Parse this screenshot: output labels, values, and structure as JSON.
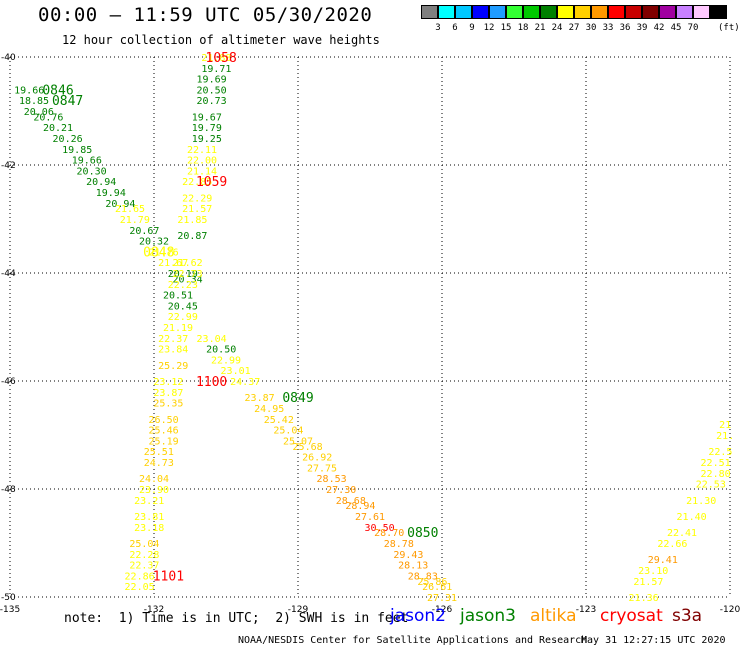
{
  "header": {
    "title": "00:00 – 11:59 UTC 05/30/2020",
    "subtitle": "12 hour collection of altimeter wave heights"
  },
  "color_scale": {
    "unit": "(ft)",
    "bins": [
      {
        "label": "",
        "color": "#7f7f7f"
      },
      {
        "label": "3",
        "color": "#00ffff"
      },
      {
        "label": "6",
        "color": "#00c8ff"
      },
      {
        "label": "9",
        "color": "#0000ff"
      },
      {
        "label": "12",
        "color": "#1f9cff"
      },
      {
        "label": "15",
        "color": "#33ff33"
      },
      {
        "label": "18",
        "color": "#00c800"
      },
      {
        "label": "21",
        "color": "#008000"
      },
      {
        "label": "24",
        "color": "#ffff00"
      },
      {
        "label": "27",
        "color": "#ffd000"
      },
      {
        "label": "30",
        "color": "#ff9900"
      },
      {
        "label": "33",
        "color": "#ff0000"
      },
      {
        "label": "36",
        "color": "#c80000"
      },
      {
        "label": "39",
        "color": "#800000"
      },
      {
        "label": "42",
        "color": "#a000a0"
      },
      {
        "label": "45",
        "color": "#c880ff"
      },
      {
        "label": "70",
        "color": "#ffc8ff"
      },
      {
        "label": "",
        "color": "#000000"
      }
    ]
  },
  "map": {
    "lat_range": [
      -50,
      -40
    ],
    "lon_range": [
      -135,
      -120
    ],
    "lat_ticks": [
      {
        "value": -40,
        "label": "-40"
      },
      {
        "value": -42,
        "label": "-42"
      },
      {
        "value": -44,
        "label": "-44"
      },
      {
        "value": -46,
        "label": "-46"
      },
      {
        "value": -48,
        "label": "-48"
      },
      {
        "value": -50,
        "label": "-50"
      }
    ],
    "lon_ticks": [
      {
        "value": -135,
        "label": "-135"
      },
      {
        "value": -132,
        "label": "-132"
      },
      {
        "value": -129,
        "label": "-129"
      },
      {
        "value": -126,
        "label": "-126"
      },
      {
        "value": -123,
        "label": "-123"
      },
      {
        "value": -120,
        "label": "-120"
      }
    ],
    "colors": {
      "dark_green": "#008000",
      "yellow": "#ffff00",
      "gold": "#ffd000",
      "orange": "#ff9900",
      "red": "#ff0000",
      "dark_red": "#c80000"
    },
    "time_labels": [
      {
        "text": "0846",
        "lon": -134.0,
        "lat": -40.6,
        "color": "#008000"
      },
      {
        "text": "0847",
        "lon": -133.8,
        "lat": -40.8,
        "color": "#008000"
      },
      {
        "text": "0848",
        "lon": -131.9,
        "lat": -43.6,
        "color": "#ffff00"
      },
      {
        "text": "1058",
        "lon": -130.6,
        "lat": -40.0,
        "color": "#ff0000"
      },
      {
        "text": "1059",
        "lon": -130.8,
        "lat": -42.3,
        "color": "#ff0000"
      },
      {
        "text": "1100",
        "lon": -130.8,
        "lat": -46.0,
        "color": "#ff0000"
      },
      {
        "text": "0849",
        "lon": -129.0,
        "lat": -46.3,
        "color": "#008000"
      },
      {
        "text": "0850",
        "lon": -126.4,
        "lat": -48.8,
        "color": "#008000"
      },
      {
        "text": "1101",
        "lon": -131.7,
        "lat": -49.6,
        "color": "#ff0000"
      }
    ],
    "observations": [
      {
        "value": "19.66",
        "lon": -134.6,
        "lat": -40.6,
        "color": "#008000"
      },
      {
        "value": "18.85",
        "lon": -134.5,
        "lat": -40.8,
        "color": "#008000"
      },
      {
        "value": "20.06",
        "lon": -134.4,
        "lat": -41.0,
        "color": "#008000"
      },
      {
        "value": "20.76",
        "lon": -134.2,
        "lat": -41.1,
        "color": "#008000"
      },
      {
        "value": "20.21",
        "lon": -134.0,
        "lat": -41.3,
        "color": "#008000"
      },
      {
        "value": "20.26",
        "lon": -133.8,
        "lat": -41.5,
        "color": "#008000"
      },
      {
        "value": "19.85",
        "lon": -133.6,
        "lat": -41.7,
        "color": "#008000"
      },
      {
        "value": "19.66",
        "lon": -133.4,
        "lat": -41.9,
        "color": "#008000"
      },
      {
        "value": "20.30",
        "lon": -133.3,
        "lat": -42.1,
        "color": "#008000"
      },
      {
        "value": "20.94",
        "lon": -133.1,
        "lat": -42.3,
        "color": "#008000"
      },
      {
        "value": "19.94",
        "lon": -132.9,
        "lat": -42.5,
        "color": "#008000"
      },
      {
        "value": "20.94",
        "lon": -132.7,
        "lat": -42.7,
        "color": "#008000"
      },
      {
        "value": "21.65",
        "lon": -132.5,
        "lat": -42.8,
        "color": "#ffff00"
      },
      {
        "value": "21.79",
        "lon": -132.4,
        "lat": -43.0,
        "color": "#ffff00"
      },
      {
        "value": "20.67",
        "lon": -132.2,
        "lat": -43.2,
        "color": "#008000"
      },
      {
        "value": "20.32",
        "lon": -132.0,
        "lat": -43.4,
        "color": "#008000"
      },
      {
        "value": "21.76",
        "lon": -131.8,
        "lat": -43.6,
        "color": "#ffff00"
      },
      {
        "value": "21.67",
        "lon": -131.6,
        "lat": -43.8,
        "color": "#ffff00"
      },
      {
        "value": "20.19",
        "lon": -131.4,
        "lat": -44.0,
        "color": "#008000"
      },
      {
        "value": "20.34",
        "lon": -131.3,
        "lat": -44.1,
        "color": "#008000"
      },
      {
        "value": "21.88",
        "lon": -130.7,
        "lat": -40.0,
        "color": "#ffff00"
      },
      {
        "value": "19.71",
        "lon": -130.7,
        "lat": -40.2,
        "color": "#008000"
      },
      {
        "value": "19.69",
        "lon": -130.8,
        "lat": -40.4,
        "color": "#008000"
      },
      {
        "value": "20.50",
        "lon": -130.8,
        "lat": -40.6,
        "color": "#008000"
      },
      {
        "value": "20.73",
        "lon": -130.8,
        "lat": -40.8,
        "color": "#008000"
      },
      {
        "value": "19.67",
        "lon": -130.9,
        "lat": -41.1,
        "color": "#008000"
      },
      {
        "value": "19.79",
        "lon": -130.9,
        "lat": -41.3,
        "color": "#008000"
      },
      {
        "value": "19.25",
        "lon": -130.9,
        "lat": -41.5,
        "color": "#008000"
      },
      {
        "value": "22.11",
        "lon": -131.0,
        "lat": -41.7,
        "color": "#ffff00"
      },
      {
        "value": "22.00",
        "lon": -131.0,
        "lat": -41.9,
        "color": "#ffff00"
      },
      {
        "value": "21.14",
        "lon": -131.0,
        "lat": -42.1,
        "color": "#ffff00"
      },
      {
        "value": "22.85",
        "lon": -131.1,
        "lat": -42.3,
        "color": "#ffff00"
      },
      {
        "value": "22.29",
        "lon": -131.1,
        "lat": -42.6,
        "color": "#ffff00"
      },
      {
        "value": "21.57",
        "lon": -131.1,
        "lat": -42.8,
        "color": "#ffff00"
      },
      {
        "value": "21.85",
        "lon": -131.2,
        "lat": -43.0,
        "color": "#ffff00"
      },
      {
        "value": "20.87",
        "lon": -131.2,
        "lat": -43.3,
        "color": "#008000"
      },
      {
        "value": "21.62",
        "lon": -131.3,
        "lat": -43.8,
        "color": "#ffff00"
      },
      {
        "value": "22.73",
        "lon": -131.3,
        "lat": -44.0,
        "color": "#ffff00"
      },
      {
        "value": "22.23",
        "lon": -131.4,
        "lat": -44.2,
        "color": "#ffff00"
      },
      {
        "value": "20.51",
        "lon": -131.5,
        "lat": -44.4,
        "color": "#008000"
      },
      {
        "value": "20.45",
        "lon": -131.4,
        "lat": -44.6,
        "color": "#008000"
      },
      {
        "value": "22.99",
        "lon": -131.4,
        "lat": -44.8,
        "color": "#ffff00"
      },
      {
        "value": "21.19",
        "lon": -131.5,
        "lat": -45.0,
        "color": "#ffff00"
      },
      {
        "value": "22.37",
        "lon": -131.6,
        "lat": -45.2,
        "color": "#ffff00"
      },
      {
        "value": "23.04",
        "lon": -130.8,
        "lat": -45.2,
        "color": "#ffff00"
      },
      {
        "value": "20.50",
        "lon": -130.6,
        "lat": -45.4,
        "color": "#008000"
      },
      {
        "value": "23.84",
        "lon": -131.6,
        "lat": -45.4,
        "color": "#ffff00"
      },
      {
        "value": "22.99",
        "lon": -130.5,
        "lat": -45.6,
        "color": "#ffff00"
      },
      {
        "value": "25.29",
        "lon": -131.6,
        "lat": -45.7,
        "color": "#ffd000"
      },
      {
        "value": "23.01",
        "lon": -130.3,
        "lat": -45.8,
        "color": "#ffff00"
      },
      {
        "value": "23.12",
        "lon": -131.7,
        "lat": -46.0,
        "color": "#ffff00"
      },
      {
        "value": "24.37",
        "lon": -130.1,
        "lat": -46.0,
        "color": "#ffff00"
      },
      {
        "value": "23.87",
        "lon": -131.7,
        "lat": -46.2,
        "color": "#ffff00"
      },
      {
        "value": "23.87",
        "lon": -129.8,
        "lat": -46.3,
        "color": "#ffd000"
      },
      {
        "value": "25.35",
        "lon": -131.7,
        "lat": -46.4,
        "color": "#ffd000"
      },
      {
        "value": "24.95",
        "lon": -129.6,
        "lat": -46.5,
        "color": "#ffd000"
      },
      {
        "value": "26.50",
        "lon": -131.8,
        "lat": -46.7,
        "color": "#ffd000"
      },
      {
        "value": "25.42",
        "lon": -129.4,
        "lat": -46.7,
        "color": "#ffd000"
      },
      {
        "value": "25.46",
        "lon": -131.8,
        "lat": -46.9,
        "color": "#ffd000"
      },
      {
        "value": "25.04",
        "lon": -129.2,
        "lat": -46.9,
        "color": "#ffd000"
      },
      {
        "value": "25.19",
        "lon": -131.8,
        "lat": -47.1,
        "color": "#ffd000"
      },
      {
        "value": "25.07",
        "lon": -129.0,
        "lat": -47.1,
        "color": "#ffd000"
      },
      {
        "value": "25.51",
        "lon": -131.9,
        "lat": -47.3,
        "color": "#ffd000"
      },
      {
        "value": "25.68",
        "lon": -128.8,
        "lat": -47.2,
        "color": "#ffd000"
      },
      {
        "value": "26.92",
        "lon": -128.6,
        "lat": -47.4,
        "color": "#ffd000"
      },
      {
        "value": "24.73",
        "lon": -131.9,
        "lat": -47.5,
        "color": "#ffd000"
      },
      {
        "value": "27.75",
        "lon": -128.5,
        "lat": -47.6,
        "color": "#ffd000"
      },
      {
        "value": "24.04",
        "lon": -132.0,
        "lat": -47.8,
        "color": "#ffd000"
      },
      {
        "value": "28.53",
        "lon": -128.3,
        "lat": -47.8,
        "color": "#ff9900"
      },
      {
        "value": "27.30",
        "lon": -128.1,
        "lat": -48.0,
        "color": "#ff9900"
      },
      {
        "value": "23.90",
        "lon": -132.0,
        "lat": -48.0,
        "color": "#ffff00"
      },
      {
        "value": "28.68",
        "lon": -127.9,
        "lat": -48.2,
        "color": "#ff9900"
      },
      {
        "value": "23.21",
        "lon": -132.1,
        "lat": -48.2,
        "color": "#ffff00"
      },
      {
        "value": "28.94",
        "lon": -127.7,
        "lat": -48.3,
        "color": "#ff9900"
      },
      {
        "value": "27.61",
        "lon": -127.5,
        "lat": -48.5,
        "color": "#ff9900"
      },
      {
        "value": "23.81",
        "lon": -132.1,
        "lat": -48.5,
        "color": "#ffff00"
      },
      {
        "value": "30.50",
        "lon": -127.3,
        "lat": -48.7,
        "color": "#ff0000"
      },
      {
        "value": "23.18",
        "lon": -132.1,
        "lat": -48.7,
        "color": "#ffff00"
      },
      {
        "value": "28.70",
        "lon": -127.1,
        "lat": -48.8,
        "color": "#ff9900"
      },
      {
        "value": "25.04",
        "lon": -132.2,
        "lat": -49.0,
        "color": "#ffd000"
      },
      {
        "value": "28.78",
        "lon": -126.9,
        "lat": -49.0,
        "color": "#ff9900"
      },
      {
        "value": "22.28",
        "lon": -132.2,
        "lat": -49.2,
        "color": "#ffff00"
      },
      {
        "value": "29.43",
        "lon": -126.7,
        "lat": -49.2,
        "color": "#ff9900"
      },
      {
        "value": "28.13",
        "lon": -126.6,
        "lat": -49.4,
        "color": "#ff9900"
      },
      {
        "value": "22.37",
        "lon": -132.2,
        "lat": -49.4,
        "color": "#ffff00"
      },
      {
        "value": "28.83",
        "lon": -126.4,
        "lat": -49.6,
        "color": "#ff9900"
      },
      {
        "value": "22.86",
        "lon": -132.3,
        "lat": -49.6,
        "color": "#ffff00"
      },
      {
        "value": "25.86",
        "lon": -126.2,
        "lat": -49.7,
        "color": "#ffd000"
      },
      {
        "value": "22.05",
        "lon": -132.3,
        "lat": -49.8,
        "color": "#ffff00"
      },
      {
        "value": "26.61",
        "lon": -126.1,
        "lat": -49.8,
        "color": "#ffd000"
      },
      {
        "value": "27.31",
        "lon": -126.0,
        "lat": -50.0,
        "color": "#ffd000"
      },
      {
        "value": "21",
        "lon": -120.1,
        "lat": -46.8,
        "color": "#ffff00"
      },
      {
        "value": "21.",
        "lon": -120.1,
        "lat": -47.0,
        "color": "#ffff00"
      },
      {
        "value": "22.5",
        "lon": -120.2,
        "lat": -47.3,
        "color": "#ffff00"
      },
      {
        "value": "22.51",
        "lon": -120.3,
        "lat": -47.5,
        "color": "#ffff00"
      },
      {
        "value": "22.80",
        "lon": -120.3,
        "lat": -47.7,
        "color": "#ffff00"
      },
      {
        "value": "22.53",
        "lon": -120.4,
        "lat": -47.9,
        "color": "#ffff00"
      },
      {
        "value": "21.30",
        "lon": -120.6,
        "lat": -48.2,
        "color": "#ffff00"
      },
      {
        "value": "21.40",
        "lon": -120.8,
        "lat": -48.5,
        "color": "#ffff00"
      },
      {
        "value": "22.41",
        "lon": -121.0,
        "lat": -48.8,
        "color": "#ffff00"
      },
      {
        "value": "22.66",
        "lon": -121.2,
        "lat": -49.0,
        "color": "#ffff00"
      },
      {
        "value": "29.41",
        "lon": -121.4,
        "lat": -49.3,
        "color": "#ff9900"
      },
      {
        "value": "23.10",
        "lon": -121.6,
        "lat": -49.5,
        "color": "#ffff00"
      },
      {
        "value": "21.57",
        "lon": -121.7,
        "lat": -49.7,
        "color": "#ffff00"
      },
      {
        "value": "21.36",
        "lon": -121.8,
        "lat": -50.0,
        "color": "#ffff00"
      }
    ]
  },
  "footer": {
    "note": "note:  1) Time is in UTC;  2) SWH is in feet",
    "legend": [
      {
        "label": "jason2",
        "color": "#0000ff"
      },
      {
        "label": "jason3",
        "color": "#008000"
      },
      {
        "label": "altika",
        "color": "#ff9900"
      },
      {
        "label": "cryosat",
        "color": "#ff0000"
      },
      {
        "label": "s3a",
        "color": "#800000"
      }
    ],
    "credit": "NOAA/NESDIS Center for Satellite Applications and Research",
    "timestamp": "May 31 12:27:15 UTC 2020"
  }
}
